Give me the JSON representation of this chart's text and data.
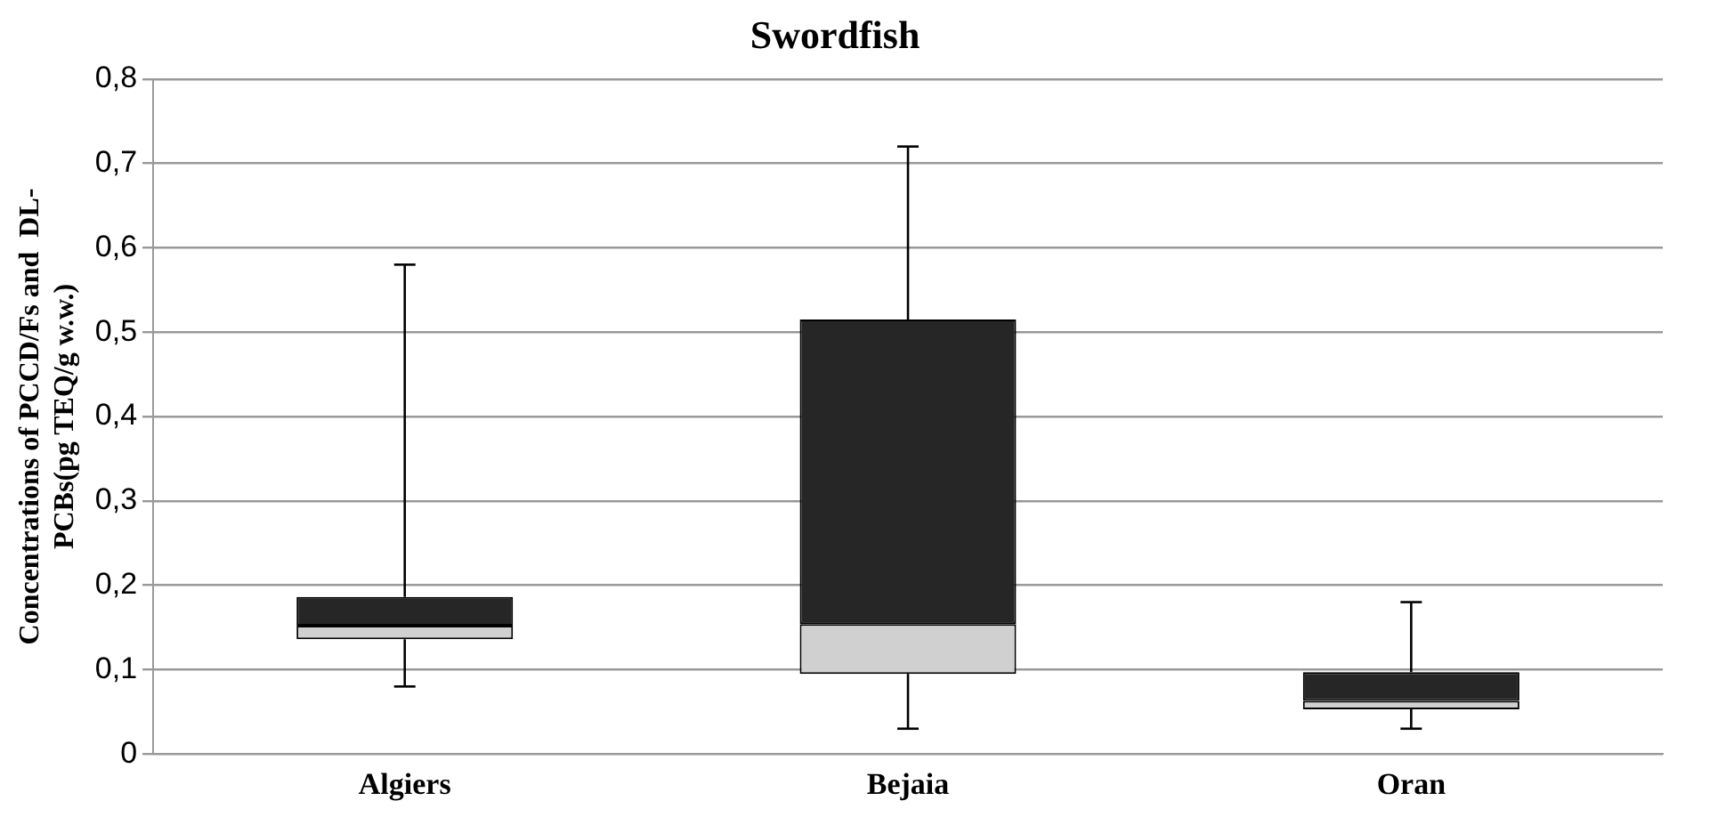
{
  "chart_data": {
    "type": "box",
    "title": "Swordfish",
    "ylabel": "Concentrations of PCCD/Fs and  DL-\nPCBs(pg TEQ/g w.w.)",
    "categories": [
      "Algiers",
      "Bejaia",
      "Oran"
    ],
    "boxes": [
      {
        "low": 0.08,
        "q1": 0.136,
        "median": 0.152,
        "q3": 0.186,
        "high": 0.58
      },
      {
        "low": 0.03,
        "q1": 0.095,
        "median": 0.154,
        "q3": 0.515,
        "high": 0.72
      },
      {
        "low": 0.03,
        "q1": 0.053,
        "median": 0.063,
        "q3": 0.097,
        "high": 0.18
      }
    ],
    "colors": [
      [
        "#d0d0d0",
        "#262626"
      ],
      [
        "#d0d0d0",
        "#262626"
      ],
      [
        "#d0d0d0",
        "#262626"
      ]
    ],
    "ylim": [
      0,
      0.8
    ],
    "yticks": [
      {
        "value": 0,
        "label": "0"
      },
      {
        "value": 0.1,
        "label": "0,1"
      },
      {
        "value": 0.2,
        "label": "0,2"
      },
      {
        "value": 0.3,
        "label": "0,3"
      },
      {
        "value": 0.4,
        "label": "0,4"
      },
      {
        "value": 0.5,
        "label": "0,5"
      },
      {
        "value": 0.6,
        "label": "0,6"
      },
      {
        "value": 0.7,
        "label": "0,7"
      },
      {
        "value": 0.8,
        "label": "0,8"
      }
    ],
    "grid": "y",
    "legend": false
  }
}
